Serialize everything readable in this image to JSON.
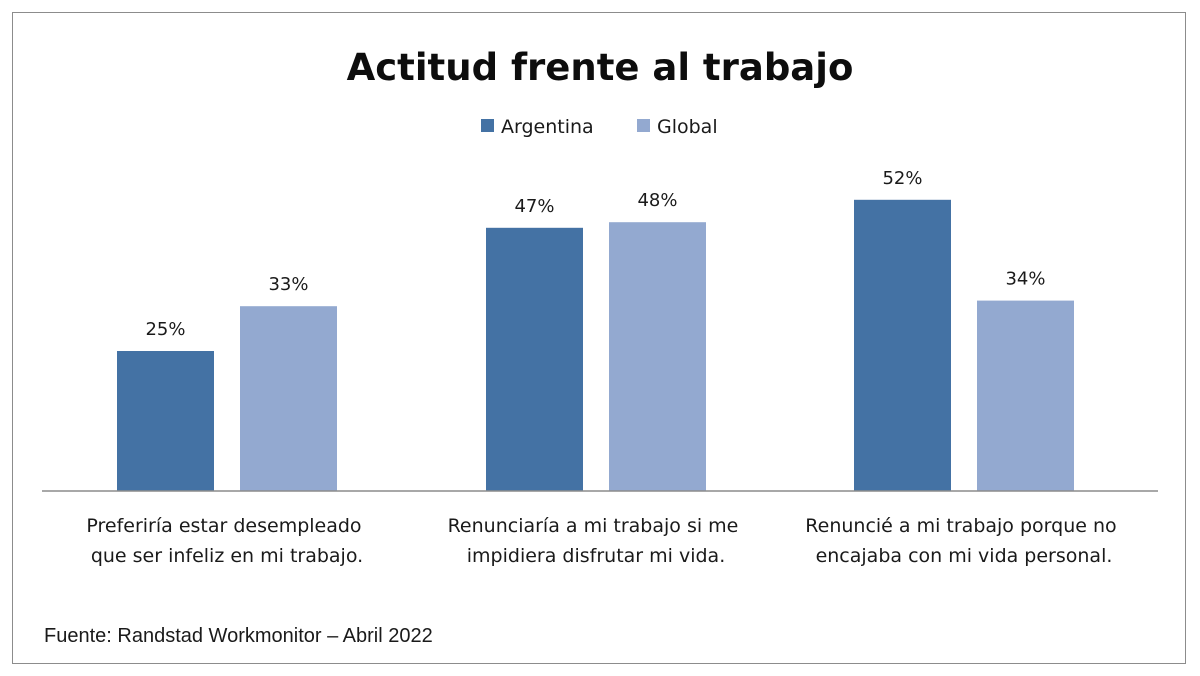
{
  "chart_data": {
    "type": "bar",
    "title": "Actitud frente al trabajo",
    "categories": [
      [
        "Preferiría estar desempleado",
        "que ser infeliz en mi trabajo."
      ],
      [
        "Renunciaría a mi trabajo si me",
        "impidiera disfrutar mi vida."
      ],
      [
        "Renuncié a mi trabajo porque no",
        "encajaba con mi vida personal."
      ]
    ],
    "series": [
      {
        "name": "Argentina",
        "color": "#4472a4",
        "values": [
          25,
          47,
          52
        ],
        "labels": [
          "25%",
          "47%",
          "52%"
        ]
      },
      {
        "name": "Global",
        "color": "#93a9d0",
        "values": [
          33,
          48,
          34
        ],
        "labels": [
          "33%",
          "48%",
          "34%"
        ]
      }
    ],
    "unit": "%",
    "ylim": [
      0,
      60
    ],
    "grid": false,
    "legend_position": "top",
    "source": "Fuente: Randstad Workmonitor – Abril 2022"
  }
}
